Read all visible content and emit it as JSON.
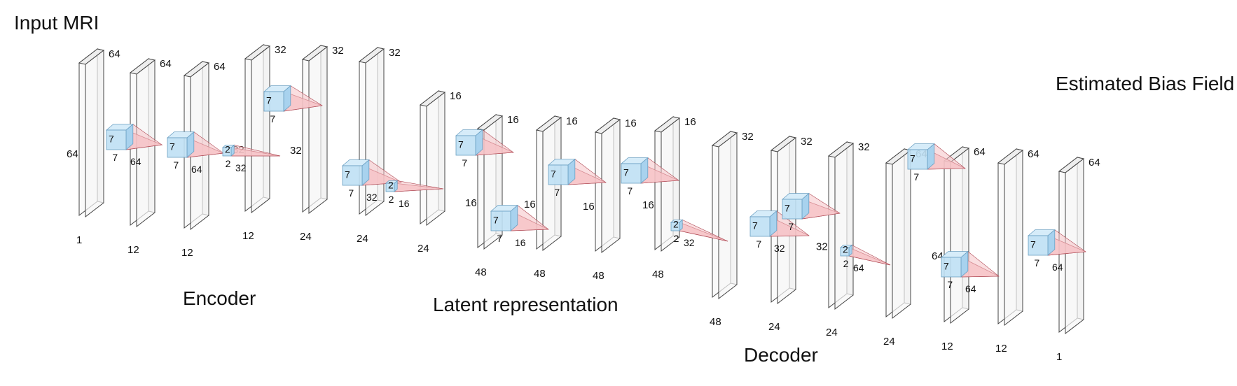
{
  "labels": {
    "input": "Input MRI",
    "output": "Estimated Bias Field",
    "encoder": "Encoder",
    "latent": "Latent representation",
    "decoder": "Decoder"
  },
  "layers": [
    {
      "channels": "1",
      "size_top": "64",
      "size_side": "64"
    },
    {
      "channels": "12",
      "size_top": "64"
    },
    {
      "channels": "12",
      "size_top": "64"
    },
    {
      "channels": "12",
      "size_top": "32",
      "size_side": "32"
    },
    {
      "channels": "24",
      "size_top": "32",
      "size_side": "32"
    },
    {
      "channels": "24",
      "size_top": "32"
    },
    {
      "channels": "24",
      "size_top": "16"
    },
    {
      "channels": "48",
      "size_top": "16",
      "size_side": "16"
    },
    {
      "channels": "48",
      "size_top": "16",
      "size_side": "16"
    },
    {
      "channels": "48",
      "size_top": "16",
      "size_side": "16"
    },
    {
      "channels": "48",
      "size_top": "16",
      "size_side": "16"
    },
    {
      "channels": "48",
      "size_top": "32"
    },
    {
      "channels": "24",
      "size_top": "32"
    },
    {
      "channels": "24",
      "size_top": "32",
      "size_side": "32"
    },
    {
      "channels": "24",
      "size_top": "64"
    },
    {
      "channels": "12",
      "size_top": "64",
      "size_side": "64"
    },
    {
      "channels": "12",
      "size_top": "64"
    },
    {
      "channels": "1",
      "size_top": "64"
    }
  ],
  "kernels": [
    {
      "front": "7",
      "bottom": "7",
      "right": "64"
    },
    {
      "front": "7",
      "bottom": "7",
      "right": "64"
    },
    {
      "front": "2",
      "bottom": "2",
      "right": "32"
    },
    {
      "front": "7",
      "bottom": "7"
    },
    {
      "front": "7",
      "bottom": "7",
      "right": "32"
    },
    {
      "front": "2",
      "bottom": "2",
      "right": "16"
    },
    {
      "front": "7",
      "bottom": "7"
    },
    {
      "front": "7",
      "bottom": "7",
      "right": "16"
    },
    {
      "front": "7",
      "bottom": "7"
    },
    {
      "front": "7",
      "bottom": "7"
    },
    {
      "front": "2",
      "bottom": "2",
      "right": "32"
    },
    {
      "front": "7",
      "bottom": "7",
      "right": "32"
    },
    {
      "front": "7",
      "bottom": "7"
    },
    {
      "front": "2",
      "bottom": "2",
      "right": "64"
    },
    {
      "front": "7",
      "bottom": "7"
    },
    {
      "front": "7",
      "bottom": "7",
      "right": "64"
    },
    {
      "front": "7",
      "bottom": "7",
      "right": "64"
    }
  ],
  "colors": {
    "slab_face": "#f6f6f6",
    "slab_edge": "#444444",
    "kernel_front": "#bfe0f4",
    "kernel_side": "#a8d2ee",
    "kernel_stroke": "#6a9fc2",
    "cone_fill": "#f6c2c6",
    "cone_stroke": "#b04a55"
  }
}
